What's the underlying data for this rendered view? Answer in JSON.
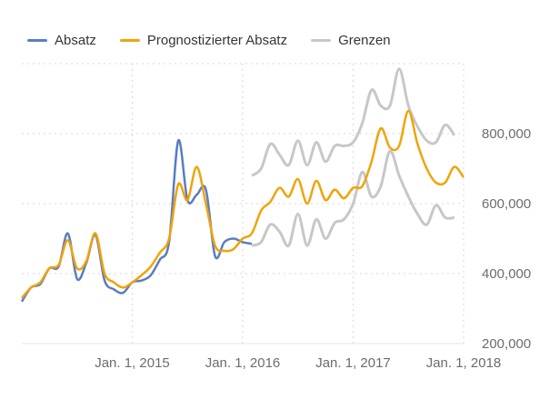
{
  "chart_data": {
    "type": "line",
    "x_unit": "month",
    "x_tick_labels": [
      "Jan. 1, 2015",
      "Jan. 1, 2016",
      "Jan. 1, 2017",
      "Jan. 1, 2018"
    ],
    "y_tick_labels": [
      "200,000",
      "400,000",
      "600,000",
      "800,000"
    ],
    "ylim": [
      200000,
      1000000
    ],
    "y_axis_side": "right",
    "grid": "dotted",
    "legend_position": "top-left",
    "series": [
      {
        "name": "Absatz",
        "color": "#5a7dc1",
        "points": [
          [
            "2014-01",
            320000
          ],
          [
            "2014-02",
            360000
          ],
          [
            "2014-03",
            370000
          ],
          [
            "2014-04",
            415000
          ],
          [
            "2014-05",
            420000
          ],
          [
            "2014-06",
            515000
          ],
          [
            "2014-07",
            385000
          ],
          [
            "2014-08",
            430000
          ],
          [
            "2014-09",
            510000
          ],
          [
            "2014-10",
            380000
          ],
          [
            "2014-11",
            355000
          ],
          [
            "2014-12",
            345000
          ],
          [
            "2015-01",
            375000
          ],
          [
            "2015-02",
            380000
          ],
          [
            "2015-03",
            395000
          ],
          [
            "2015-04",
            440000
          ],
          [
            "2015-05",
            490000
          ],
          [
            "2015-06",
            780000
          ],
          [
            "2015-07",
            610000
          ],
          [
            "2015-08",
            625000
          ],
          [
            "2015-09",
            640000
          ],
          [
            "2015-10",
            450000
          ],
          [
            "2015-11",
            490000
          ],
          [
            "2015-12",
            500000
          ],
          [
            "2016-01",
            490000
          ],
          [
            "2016-02",
            485000
          ]
        ]
      },
      {
        "name": "Prognostizierter Absatz",
        "color": "#f0a30a",
        "points": [
          [
            "2014-01",
            330000
          ],
          [
            "2014-02",
            360000
          ],
          [
            "2014-03",
            375000
          ],
          [
            "2014-04",
            415000
          ],
          [
            "2014-05",
            425000
          ],
          [
            "2014-06",
            495000
          ],
          [
            "2014-07",
            415000
          ],
          [
            "2014-08",
            435000
          ],
          [
            "2014-09",
            515000
          ],
          [
            "2014-10",
            400000
          ],
          [
            "2014-11",
            375000
          ],
          [
            "2014-12",
            360000
          ],
          [
            "2015-01",
            375000
          ],
          [
            "2015-02",
            395000
          ],
          [
            "2015-03",
            420000
          ],
          [
            "2015-04",
            460000
          ],
          [
            "2015-05",
            500000
          ],
          [
            "2015-06",
            655000
          ],
          [
            "2015-07",
            610000
          ],
          [
            "2015-08",
            705000
          ],
          [
            "2015-09",
            600000
          ],
          [
            "2015-10",
            480000
          ],
          [
            "2015-11",
            465000
          ],
          [
            "2015-12",
            470000
          ],
          [
            "2016-01",
            500000
          ],
          [
            "2016-02",
            515000
          ],
          [
            "2016-03",
            580000
          ],
          [
            "2016-04",
            605000
          ],
          [
            "2016-05",
            645000
          ],
          [
            "2016-06",
            620000
          ],
          [
            "2016-07",
            670000
          ],
          [
            "2016-08",
            600000
          ],
          [
            "2016-09",
            665000
          ],
          [
            "2016-10",
            610000
          ],
          [
            "2016-11",
            640000
          ],
          [
            "2016-12",
            615000
          ],
          [
            "2017-01",
            645000
          ],
          [
            "2017-02",
            650000
          ],
          [
            "2017-03",
            720000
          ],
          [
            "2017-04",
            815000
          ],
          [
            "2017-05",
            760000
          ],
          [
            "2017-06",
            765000
          ],
          [
            "2017-07",
            865000
          ],
          [
            "2017-08",
            770000
          ],
          [
            "2017-09",
            700000
          ],
          [
            "2017-10",
            660000
          ],
          [
            "2017-11",
            660000
          ],
          [
            "2017-12",
            705000
          ],
          [
            "2018-01",
            675000
          ]
        ]
      },
      {
        "name": "Grenzen",
        "color": "#c7c7c7",
        "upper_points": [
          [
            "2016-02",
            680000
          ],
          [
            "2016-03",
            700000
          ],
          [
            "2016-04",
            770000
          ],
          [
            "2016-05",
            740000
          ],
          [
            "2016-06",
            710000
          ],
          [
            "2016-07",
            780000
          ],
          [
            "2016-08",
            710000
          ],
          [
            "2016-09",
            775000
          ],
          [
            "2016-10",
            720000
          ],
          [
            "2016-11",
            765000
          ],
          [
            "2016-12",
            765000
          ],
          [
            "2017-01",
            775000
          ],
          [
            "2017-02",
            830000
          ],
          [
            "2017-03",
            925000
          ],
          [
            "2017-04",
            880000
          ],
          [
            "2017-05",
            880000
          ],
          [
            "2017-06",
            985000
          ],
          [
            "2017-07",
            880000
          ],
          [
            "2017-08",
            820000
          ],
          [
            "2017-09",
            780000
          ],
          [
            "2017-10",
            775000
          ],
          [
            "2017-11",
            825000
          ],
          [
            "2017-12",
            795000
          ]
        ],
        "lower_points": [
          [
            "2016-02",
            480000
          ],
          [
            "2016-03",
            490000
          ],
          [
            "2016-04",
            540000
          ],
          [
            "2016-05",
            520000
          ],
          [
            "2016-06",
            480000
          ],
          [
            "2016-07",
            570000
          ],
          [
            "2016-08",
            480000
          ],
          [
            "2016-09",
            555000
          ],
          [
            "2016-10",
            500000
          ],
          [
            "2016-11",
            545000
          ],
          [
            "2016-12",
            555000
          ],
          [
            "2017-01",
            600000
          ],
          [
            "2017-02",
            690000
          ],
          [
            "2017-03",
            620000
          ],
          [
            "2017-04",
            650000
          ],
          [
            "2017-05",
            750000
          ],
          [
            "2017-06",
            680000
          ],
          [
            "2017-07",
            620000
          ],
          [
            "2017-08",
            570000
          ],
          [
            "2017-09",
            540000
          ],
          [
            "2017-10",
            595000
          ],
          [
            "2017-11",
            560000
          ],
          [
            "2017-12",
            560000
          ]
        ]
      }
    ]
  }
}
